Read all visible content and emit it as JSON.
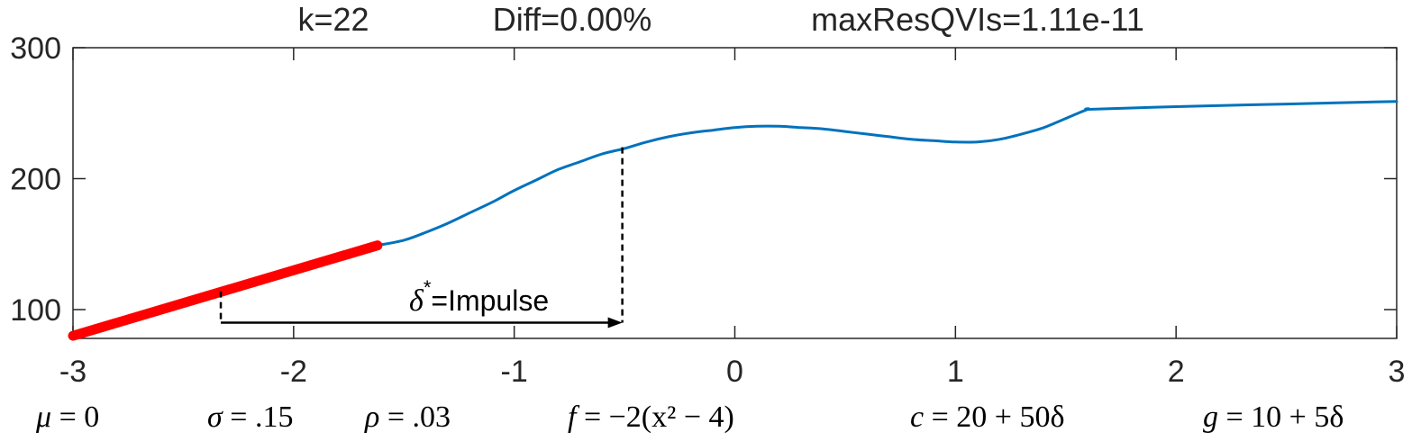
{
  "chart_data": {
    "type": "line",
    "title_parts": [
      "k=22",
      "Diff=0.00%",
      "maxResQVIs=1.11e-11"
    ],
    "xlim": [
      -3,
      3
    ],
    "ylim": [
      78,
      300
    ],
    "x_ticks": [
      -3,
      -2,
      -1,
      0,
      1,
      2,
      3
    ],
    "x_tick_labels": [
      "-3",
      "-2",
      "-1",
      "0",
      "1",
      "2",
      "3"
    ],
    "y_ticks": [
      100,
      200,
      300
    ],
    "y_tick_labels": [
      "100",
      "200",
      "300"
    ],
    "grid": false,
    "series": [
      {
        "color": "#0072BD",
        "x": [
          -1.62,
          -1.5,
          -1.4,
          -1.3,
          -1.2,
          -1.1,
          -1.0,
          -0.9,
          -0.8,
          -0.7,
          -0.6,
          -0.5,
          -0.4,
          -0.3,
          -0.2,
          -0.1,
          0.0,
          0.1,
          0.2,
          0.3,
          0.4,
          0.5,
          0.6,
          0.7,
          0.8,
          0.9,
          1.0,
          1.1,
          1.2,
          1.3,
          1.4,
          1.5,
          1.6,
          1.62,
          2.0,
          2.5,
          3.0
        ],
        "y": [
          149,
          153,
          159,
          166,
          174,
          182,
          191,
          199,
          207,
          213,
          219,
          223,
          228,
          232,
          235,
          237,
          239,
          240,
          240,
          239,
          238,
          236,
          234,
          232,
          230,
          229,
          228,
          228,
          230,
          234,
          239,
          246,
          253,
          253,
          255,
          257,
          259
        ]
      },
      {
        "color": "#FF0000",
        "style": "thick",
        "x": [
          -3.0,
          -1.62
        ],
        "y": [
          80,
          149
        ]
      }
    ],
    "annotations": {
      "impulse_label_symbol": "δ",
      "impulse_label_superscript": "*",
      "impulse_label_text": "=Impulse",
      "impulse_start": {
        "x": -2.33,
        "y": 114
      },
      "impulse_end": {
        "x": -0.51,
        "y": 224
      },
      "arrow_y": 90
    }
  },
  "footer": {
    "mu": {
      "sym": "μ",
      "rest": " = 0"
    },
    "sigma": {
      "sym": "σ",
      "rest": " = .15"
    },
    "rho": {
      "sym": "ρ",
      "rest": " = .03"
    },
    "f": {
      "sym": "f",
      "rest": " = −2(x² − 4)"
    },
    "c": {
      "sym": "c",
      "rest": " = 20 + 50δ"
    },
    "g": {
      "sym": "g",
      "rest": " = 10 + 5δ"
    }
  }
}
